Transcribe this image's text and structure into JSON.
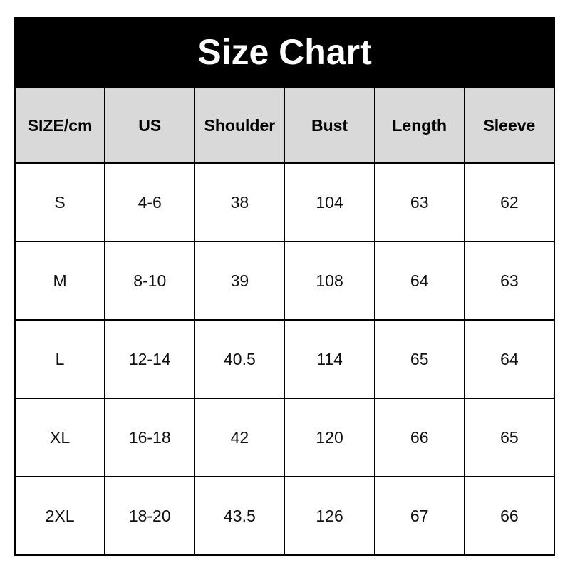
{
  "title": "Size Chart",
  "columns": [
    "SIZE/cm",
    "US",
    "Shoulder",
    "Bust",
    "Length",
    "Sleeve"
  ],
  "rows": [
    [
      "S",
      "4-6",
      "38",
      "104",
      "63",
      "62"
    ],
    [
      "M",
      "8-10",
      "39",
      "108",
      "64",
      "63"
    ],
    [
      "L",
      "12-14",
      "40.5",
      "114",
      "65",
      "64"
    ],
    [
      "XL",
      "16-18",
      "42",
      "120",
      "66",
      "65"
    ],
    [
      "2XL",
      "18-20",
      "43.5",
      "126",
      "67",
      "66"
    ]
  ],
  "colors": {
    "title_bg": "#000000",
    "title_text": "#ffffff",
    "header_bg": "#d9d9d9"
  }
}
